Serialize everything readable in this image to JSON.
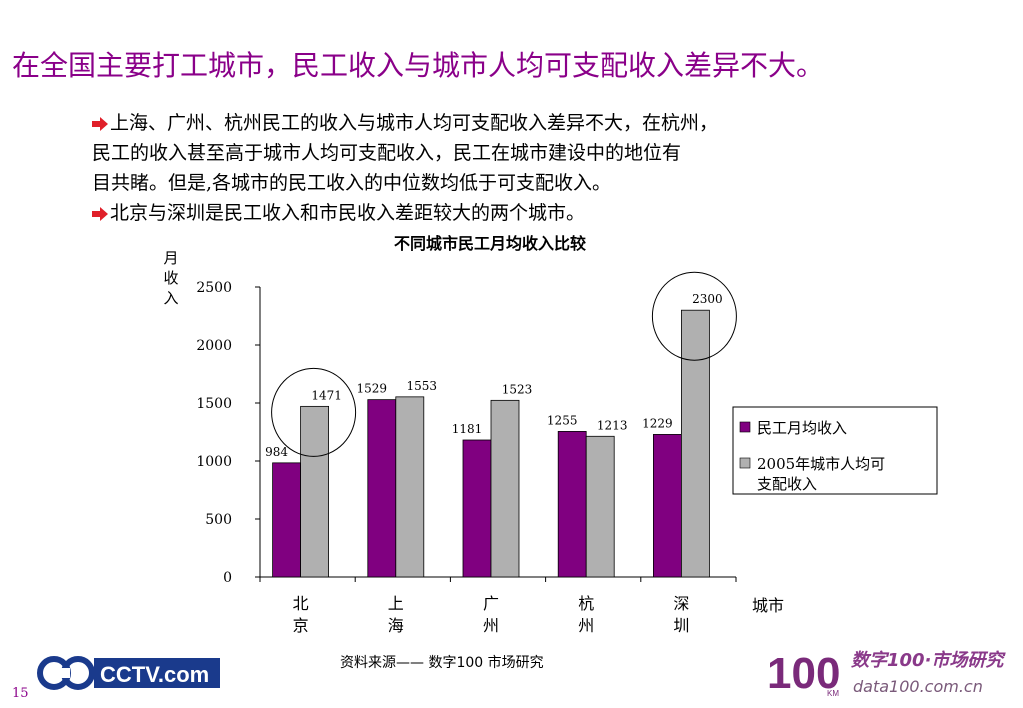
{
  "slide": {
    "title": "在全国主要打工城市，民工收入与城市人均可支配收入差异不大。",
    "bullets": [
      [
        "上海、广州、杭州民工的收入与城市人均可支配收入差异不大，在杭州，",
        "民工的收入甚至高于城市人均可支配收入，民工在城市建设中的地位有",
        "目共睹。但是,各城市的民工收入的中位数均低于可支配收入。"
      ],
      [
        "北京与深圳是民工收入和市民收入差距较大的两个城市。"
      ]
    ],
    "source": "资料来源——  数字100   市场研究",
    "page_number": "15",
    "logo_left": "CCTV.com",
    "logo_right_main": "数字100·市场研究",
    "logo_right_url": "data100.com.cn",
    "logo_right_badge": "100",
    "logo_right_km": "KM"
  },
  "colors": {
    "title": "#8a0089",
    "series_workers": "#800080",
    "series_city": "#b0b0b0",
    "bullet_arrow": "#e0202a"
  },
  "chart_data": {
    "type": "bar",
    "title": "不同城市民工月均收入比较",
    "ylabel": "月收入",
    "xlabel": "城市",
    "categories": [
      "北京",
      "上海",
      "广州",
      "杭州",
      "深圳"
    ],
    "series": [
      {
        "name": "民工月均收入",
        "values": [
          984,
          1529,
          1181,
          1255,
          1229
        ]
      },
      {
        "name": "2005年城市人均可支配收入",
        "values": [
          1471,
          1553,
          1523,
          1213,
          2300
        ]
      }
    ],
    "ylim": [
      0,
      2500
    ],
    "yticks": [
      0,
      500,
      1000,
      1500,
      2000,
      2500
    ],
    "legend_position": "right",
    "highlighted_categories": [
      "北京",
      "深圳"
    ],
    "grid": false
  }
}
